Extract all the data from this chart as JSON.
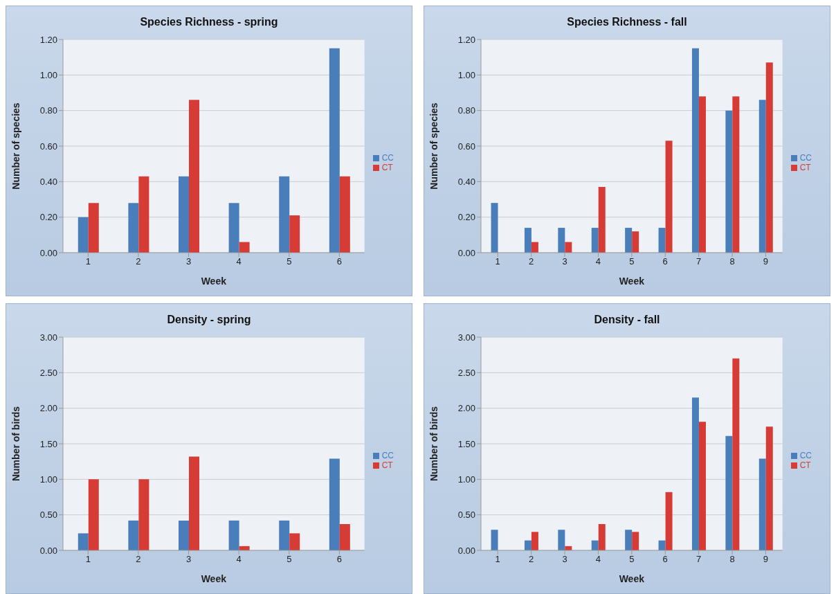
{
  "chart_data": [
    {
      "type": "bar",
      "title": "Species Richness - spring",
      "xlabel": "Week",
      "ylabel": "Number of species",
      "categories": [
        "1",
        "2",
        "3",
        "4",
        "5",
        "6"
      ],
      "series": [
        {
          "name": "CC",
          "color": "#4a7ebb",
          "values": [
            0.2,
            0.28,
            0.43,
            0.28,
            0.43,
            1.15
          ]
        },
        {
          "name": "CT",
          "color": "#d63b35",
          "values": [
            0.28,
            0.43,
            0.86,
            0.06,
            0.21,
            0.43
          ]
        }
      ],
      "ylim": [
        0,
        1.2
      ],
      "yticks": [
        {
          "value": 0,
          "label": "0.00"
        },
        {
          "value": 0.2,
          "label": "0.20"
        },
        {
          "value": 0.4,
          "label": "0.40"
        },
        {
          "value": 0.6,
          "label": "0.60"
        },
        {
          "value": 0.8,
          "label": "0.80"
        },
        {
          "value": 1.0,
          "label": "1.00"
        },
        {
          "value": 1.2,
          "label": "1.20"
        }
      ],
      "grid": "y",
      "legend": "right"
    },
    {
      "type": "bar",
      "title": "Species Richness - fall",
      "xlabel": "Week",
      "ylabel": "Number of species",
      "categories": [
        "1",
        "2",
        "3",
        "4",
        "5",
        "6",
        "7",
        "8",
        "9"
      ],
      "series": [
        {
          "name": "CC",
          "color": "#4a7ebb",
          "values": [
            0.28,
            0.14,
            0.14,
            0.14,
            0.14,
            0.14,
            1.15,
            0.8,
            0.86
          ]
        },
        {
          "name": "CT",
          "color": "#d63b35",
          "values": [
            0,
            0.06,
            0.06,
            0.37,
            0.12,
            0.63,
            0.88,
            0.88,
            1.07
          ]
        }
      ],
      "ylim": [
        0,
        1.2
      ],
      "yticks": [
        {
          "value": 0,
          "label": "0.00"
        },
        {
          "value": 0.2,
          "label": "0.20"
        },
        {
          "value": 0.4,
          "label": "0.40"
        },
        {
          "value": 0.6,
          "label": "0.60"
        },
        {
          "value": 0.8,
          "label": "0.80"
        },
        {
          "value": 1.0,
          "label": "1.00"
        },
        {
          "value": 1.2,
          "label": "1.20"
        }
      ],
      "grid": "y",
      "legend": "right"
    },
    {
      "type": "bar",
      "title": "Density - spring",
      "xlabel": "Week",
      "ylabel": "Number of birds",
      "categories": [
        "1",
        "2",
        "3",
        "4",
        "5",
        "6"
      ],
      "series": [
        {
          "name": "CC",
          "color": "#4a7ebb",
          "values": [
            0.24,
            0.42,
            0.42,
            0.42,
            0.42,
            1.29
          ]
        },
        {
          "name": "CT",
          "color": "#d63b35",
          "values": [
            1.0,
            1.0,
            1.32,
            0.06,
            0.24,
            0.37
          ]
        }
      ],
      "ylim": [
        0,
        3
      ],
      "yticks": [
        {
          "value": 0,
          "label": "0.00"
        },
        {
          "value": 0.5,
          "label": "0.50"
        },
        {
          "value": 1,
          "label": "1.00"
        },
        {
          "value": 1.5,
          "label": "1.50"
        },
        {
          "value": 2,
          "label": "2.00"
        },
        {
          "value": 2.5,
          "label": "2.50"
        },
        {
          "value": 3,
          "label": "3.00"
        }
      ],
      "grid": "y",
      "legend": "right"
    },
    {
      "type": "bar",
      "title": "Density - fall",
      "xlabel": "Week",
      "ylabel": "Number of birds",
      "categories": [
        "1",
        "2",
        "3",
        "4",
        "5",
        "6",
        "7",
        "8",
        "9"
      ],
      "series": [
        {
          "name": "CC",
          "color": "#4a7ebb",
          "values": [
            0.29,
            0.14,
            0.29,
            0.14,
            0.29,
            0.14,
            2.15,
            1.61,
            1.29
          ]
        },
        {
          "name": "CT",
          "color": "#d63b35",
          "values": [
            0,
            0.26,
            0.06,
            0.37,
            0.26,
            0.82,
            1.81,
            2.7,
            1.74
          ]
        }
      ],
      "ylim": [
        0,
        3
      ],
      "yticks": [
        {
          "value": 0,
          "label": "0.00"
        },
        {
          "value": 0.5,
          "label": "0.50"
        },
        {
          "value": 1,
          "label": "1.00"
        },
        {
          "value": 1.5,
          "label": "1.50"
        },
        {
          "value": 2,
          "label": "2.00"
        },
        {
          "value": 2.5,
          "label": "2.50"
        },
        {
          "value": 3,
          "label": "3.00"
        }
      ],
      "grid": "y",
      "legend": "right"
    }
  ]
}
